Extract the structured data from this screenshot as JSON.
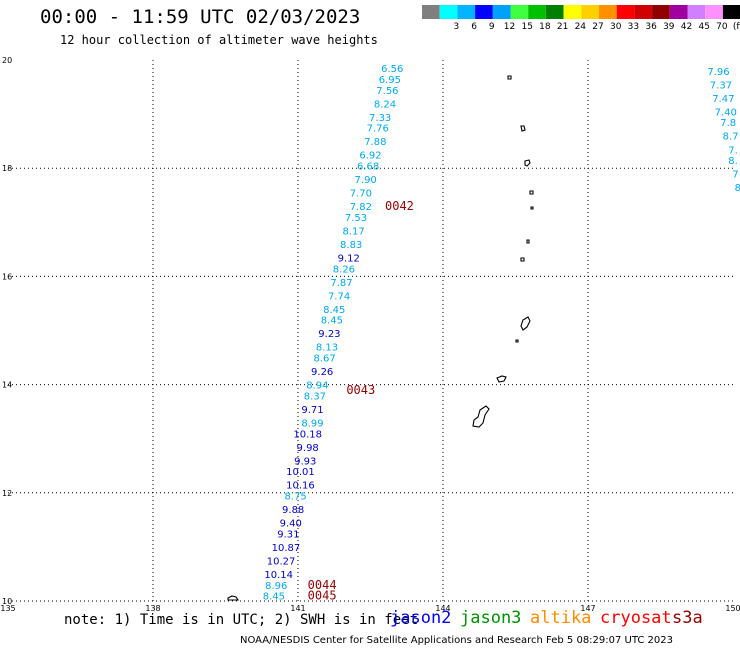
{
  "header": {
    "title": "00:00 - 11:59 UTC 02/03/2023",
    "subtitle": "12 hour collection of altimeter wave heights"
  },
  "legend": {
    "bins": [
      {
        "label": "",
        "color": "#7f7f7f"
      },
      {
        "label": "3",
        "color": "#00ffff"
      },
      {
        "label": "6",
        "color": "#00b4ff"
      },
      {
        "label": "9",
        "color": "#0000ff"
      },
      {
        "label": "12",
        "color": "#00a0ff"
      },
      {
        "label": "15",
        "color": "#40ff40"
      },
      {
        "label": "18",
        "color": "#00c000"
      },
      {
        "label": "21",
        "color": "#008000"
      },
      {
        "label": "24",
        "color": "#ffff00"
      },
      {
        "label": "27",
        "color": "#ffd000"
      },
      {
        "label": "30",
        "color": "#ff9000"
      },
      {
        "label": "33",
        "color": "#ff0000"
      },
      {
        "label": "36",
        "color": "#d00000"
      },
      {
        "label": "39",
        "color": "#900000"
      },
      {
        "label": "42",
        "color": "#a000a0"
      },
      {
        "label": "45",
        "color": "#d080ff"
      },
      {
        "label": "70",
        "color": "#ff90ff"
      },
      {
        "label": "(ft)",
        "color": "#000000"
      }
    ]
  },
  "colors": {
    "cyan_track": "#00a8e8",
    "blue_track": "#0000c0",
    "pass_label": "#900000",
    "jason2": "#0000ff",
    "jason3": "#009000",
    "altika": "#ff8c00",
    "cryosat": "#ff0000",
    "s3a": "#900000",
    "grid": "#000000",
    "coast": "#000000"
  },
  "footer": {
    "note": "note: 1) Time is in UTC; 2) SWH is in feet",
    "credit": "NOAA/NESDIS Center for Satellite Applications and Research   Feb  5 08:29:07 UTC 2023",
    "satellites": [
      "jason2",
      "jason3",
      "altika",
      "cryosat",
      "s3a"
    ]
  },
  "chart_data": {
    "type": "scatter",
    "xlabel": "",
    "ylabel": "",
    "xlim": [
      135,
      150
    ],
    "ylim": [
      10,
      20
    ],
    "x_ticks": [
      "135",
      "138",
      "141",
      "144",
      "147",
      "150"
    ],
    "y_ticks": [
      "10",
      "12",
      "14",
      "16",
      "18",
      "20"
    ],
    "grid": true,
    "units": "ft",
    "pass_labels": [
      {
        "label": "0042",
        "lon": 142.8,
        "lat": 17.3
      },
      {
        "label": "0043",
        "lon": 142.0,
        "lat": 13.9
      },
      {
        "label": "0044",
        "lon": 141.2,
        "lat": 10.3
      },
      {
        "label": "0045",
        "lon": 141.2,
        "lat": 10.1
      }
    ],
    "series": [
      {
        "points": [
          {
            "lon": 142.95,
            "lat": 19.85,
            "value": "6.56",
            "color": "cyan"
          },
          {
            "lon": 142.9,
            "lat": 19.65,
            "value": "6.95",
            "color": "cyan"
          },
          {
            "lon": 142.85,
            "lat": 19.45,
            "value": "7.56",
            "color": "cyan"
          },
          {
            "lon": 142.8,
            "lat": 19.2,
            "value": "8.24",
            "color": "cyan"
          },
          {
            "lon": 142.7,
            "lat": 18.95,
            "value": "7.33",
            "color": "cyan"
          },
          {
            "lon": 142.65,
            "lat": 18.75,
            "value": "7.76",
            "color": "cyan"
          },
          {
            "lon": 142.6,
            "lat": 18.5,
            "value": "7.88",
            "color": "cyan"
          },
          {
            "lon": 142.5,
            "lat": 18.25,
            "value": "6.92",
            "color": "cyan"
          },
          {
            "lon": 142.45,
            "lat": 18.05,
            "value": "6.68",
            "color": "cyan"
          },
          {
            "lon": 142.4,
            "lat": 17.8,
            "value": "7.90",
            "color": "cyan"
          },
          {
            "lon": 142.3,
            "lat": 17.55,
            "value": "7.70",
            "color": "cyan"
          },
          {
            "lon": 142.3,
            "lat": 17.3,
            "value": "7.82",
            "color": "cyan"
          },
          {
            "lon": 142.2,
            "lat": 17.1,
            "value": "7.53",
            "color": "cyan"
          },
          {
            "lon": 142.15,
            "lat": 16.85,
            "value": "8.17",
            "color": "cyan"
          },
          {
            "lon": 142.1,
            "lat": 16.6,
            "value": "8.83",
            "color": "cyan"
          },
          {
            "lon": 142.05,
            "lat": 16.35,
            "value": "9.12",
            "color": "blue"
          },
          {
            "lon": 141.95,
            "lat": 16.15,
            "value": "8.26",
            "color": "cyan"
          },
          {
            "lon": 141.9,
            "lat": 15.9,
            "value": "7.87",
            "color": "cyan"
          },
          {
            "lon": 141.85,
            "lat": 15.65,
            "value": "7.74",
            "color": "cyan"
          },
          {
            "lon": 141.75,
            "lat": 15.4,
            "value": "8.45",
            "color": "cyan"
          },
          {
            "lon": 141.7,
            "lat": 15.2,
            "value": "8.45",
            "color": "cyan"
          },
          {
            "lon": 141.65,
            "lat": 14.95,
            "value": "9.23",
            "color": "blue"
          },
          {
            "lon": 141.6,
            "lat": 14.7,
            "value": "8.13",
            "color": "cyan"
          },
          {
            "lon": 141.55,
            "lat": 14.5,
            "value": "8.67",
            "color": "cyan"
          },
          {
            "lon": 141.5,
            "lat": 14.25,
            "value": "9.26",
            "color": "blue"
          },
          {
            "lon": 141.4,
            "lat": 14.0,
            "value": "8.94",
            "color": "cyan"
          },
          {
            "lon": 141.35,
            "lat": 13.8,
            "value": "8.37",
            "color": "cyan"
          },
          {
            "lon": 141.3,
            "lat": 13.55,
            "value": "9.71",
            "color": "blue"
          },
          {
            "lon": 141.3,
            "lat": 13.3,
            "value": "8.99",
            "color": "cyan"
          },
          {
            "lon": 141.2,
            "lat": 13.1,
            "value": "10.18",
            "color": "blue"
          },
          {
            "lon": 141.2,
            "lat": 12.85,
            "value": "9.98",
            "color": "blue"
          },
          {
            "lon": 141.15,
            "lat": 12.6,
            "value": "9.93",
            "color": "blue"
          },
          {
            "lon": 141.05,
            "lat": 12.4,
            "value": "10.01",
            "color": "blue"
          },
          {
            "lon": 141.05,
            "lat": 12.15,
            "value": "10.16",
            "color": "blue"
          },
          {
            "lon": 140.95,
            "lat": 11.95,
            "value": "8.75",
            "color": "cyan"
          },
          {
            "lon": 140.9,
            "lat": 11.7,
            "value": "9.88",
            "color": "blue"
          },
          {
            "lon": 140.85,
            "lat": 11.45,
            "value": "9.40",
            "color": "blue"
          },
          {
            "lon": 140.8,
            "lat": 11.25,
            "value": "9.31",
            "color": "blue"
          },
          {
            "lon": 140.75,
            "lat": 11.0,
            "value": "10.87",
            "color": "blue"
          },
          {
            "lon": 140.65,
            "lat": 10.75,
            "value": "10.27",
            "color": "blue"
          },
          {
            "lon": 140.6,
            "lat": 10.5,
            "value": "10.14",
            "color": "blue"
          },
          {
            "lon": 140.55,
            "lat": 10.3,
            "value": "8.96",
            "color": "cyan"
          },
          {
            "lon": 140.5,
            "lat": 10.1,
            "value": "8.45",
            "color": "cyan"
          }
        ]
      },
      {
        "points": [
          {
            "lon": 149.7,
            "lat": 19.8,
            "value": "7.96",
            "color": "cyan"
          },
          {
            "lon": 149.75,
            "lat": 19.55,
            "value": "7.37",
            "color": "cyan"
          },
          {
            "lon": 149.8,
            "lat": 19.3,
            "value": "7.47",
            "color": "cyan"
          },
          {
            "lon": 149.85,
            "lat": 19.05,
            "value": "7.40",
            "color": "cyan"
          },
          {
            "lon": 149.9,
            "lat": 18.85,
            "value": "7.8",
            "color": "cyan"
          },
          {
            "lon": 149.95,
            "lat": 18.6,
            "value": "8.7",
            "color": "cyan"
          },
          {
            "lon": 150.0,
            "lat": 18.35,
            "value": "7.",
            "color": "cyan"
          },
          {
            "lon": 150.0,
            "lat": 18.15,
            "value": "8.",
            "color": "cyan"
          },
          {
            "lon": 150.05,
            "lat": 17.9,
            "value": "7",
            "color": "cyan"
          },
          {
            "lon": 150.1,
            "lat": 17.65,
            "value": "8",
            "color": "cyan"
          }
        ]
      }
    ]
  }
}
